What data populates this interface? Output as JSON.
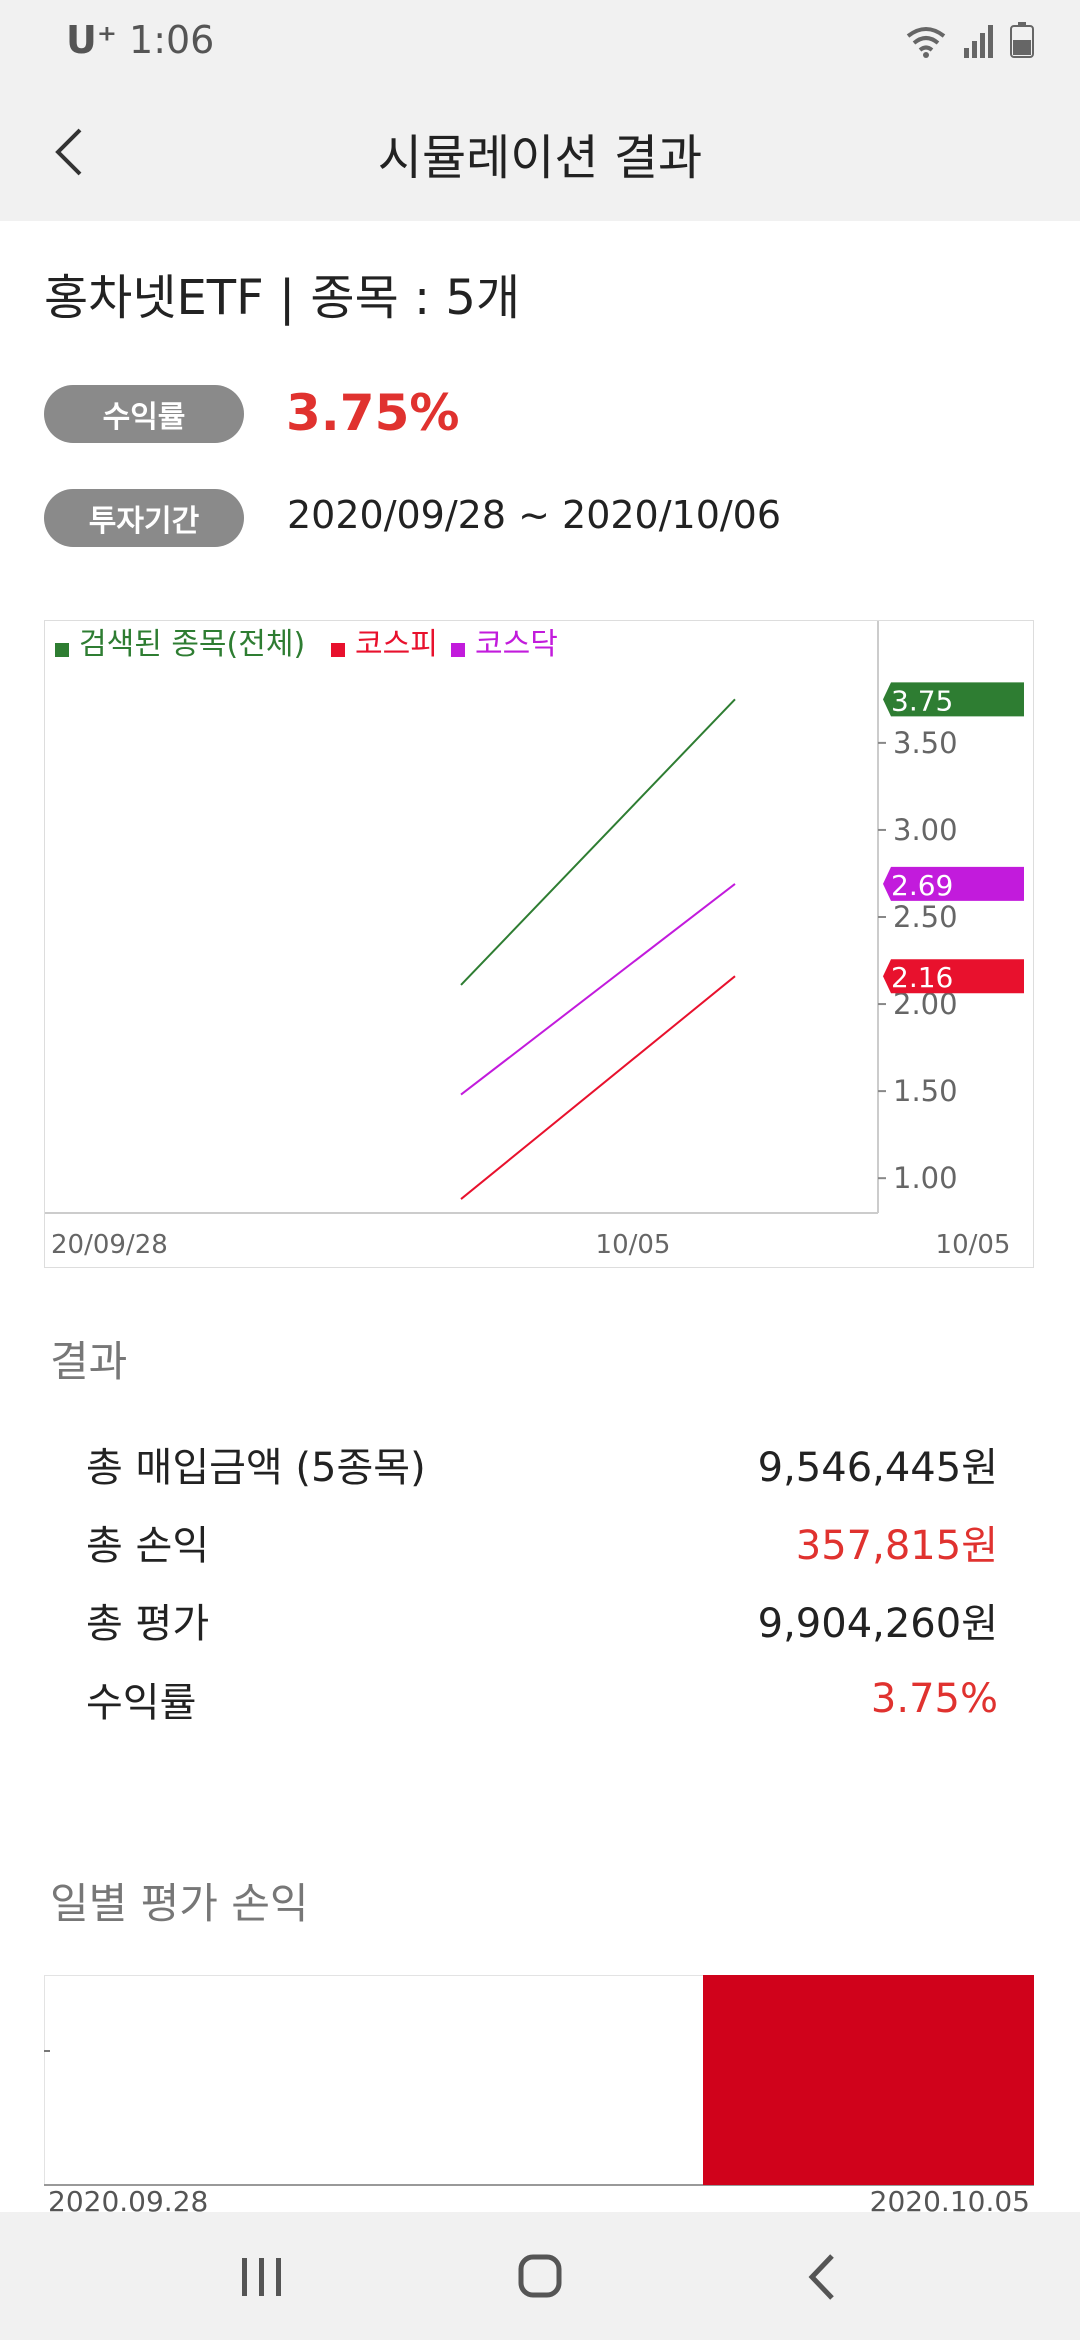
{
  "status_bar": {
    "carrier": "U⁺",
    "time": "1:06",
    "icons": [
      "wifi-icon",
      "signal-icon",
      "battery-icon"
    ]
  },
  "app_bar": {
    "back_icon": "chevron-left-icon",
    "title": "시뮬레이션 결과"
  },
  "summary": {
    "headline": "홍차넷ETF | 종목 : 5개",
    "return_label": "수익률",
    "return_value": "3.75%",
    "period_label": "투자기간",
    "period_value": "2020/09/28 ~ 2020/10/06"
  },
  "colors": {
    "accent_red": "#e0322f",
    "series_all": "#2e7d32",
    "series_kospi": "#e8112d",
    "series_kosdaq": "#c21bdc"
  },
  "chart_data": [
    {
      "type": "line",
      "legend": [
        "검색된 종목(전체)",
        "코스피",
        "코스닥"
      ],
      "legend_placement": "top-left",
      "x_tick_labels": [
        "20/09/28",
        "10/05",
        "10/05"
      ],
      "y_ticks": [
        1.0,
        1.5,
        2.0,
        2.5,
        3.0,
        3.5
      ],
      "y_tick_labels": [
        "1.00",
        "1.50",
        "2.00",
        "2.50",
        "3.00",
        "3.50"
      ],
      "ylim": [
        0.8,
        4.2
      ],
      "series": [
        {
          "name": "검색된 종목(전체)",
          "start": 2.11,
          "end": 3.75,
          "last_label": "3.75",
          "color": "#2e7d32"
        },
        {
          "name": "코스닥",
          "start": 1.48,
          "end": 2.69,
          "last_label": "2.69",
          "color": "#c21bdc"
        },
        {
          "name": "코스피",
          "start": 0.88,
          "end": 2.16,
          "last_label": "2.16",
          "color": "#e8112d"
        }
      ]
    },
    {
      "type": "bar",
      "x_tick_labels": [
        "2020.09.28",
        "2020.10.05"
      ],
      "values": [
        0,
        357815
      ],
      "bar_color": "#d0021b"
    }
  ],
  "results": {
    "title": "결과",
    "rows": [
      {
        "label": "총 매입금액 (5종목)",
        "value": "9,546,445원",
        "highlight": false
      },
      {
        "label": "총 손익",
        "value": "357,815원",
        "highlight": true
      },
      {
        "label": "총 평가",
        "value": "9,904,260원",
        "highlight": false
      },
      {
        "label": "수익률",
        "value": "3.75%",
        "highlight": true
      }
    ]
  },
  "daily": {
    "title": "일별 평가 손익"
  },
  "nav_bar": {
    "icons": [
      "recent-apps-icon",
      "home-icon",
      "back-icon"
    ]
  }
}
